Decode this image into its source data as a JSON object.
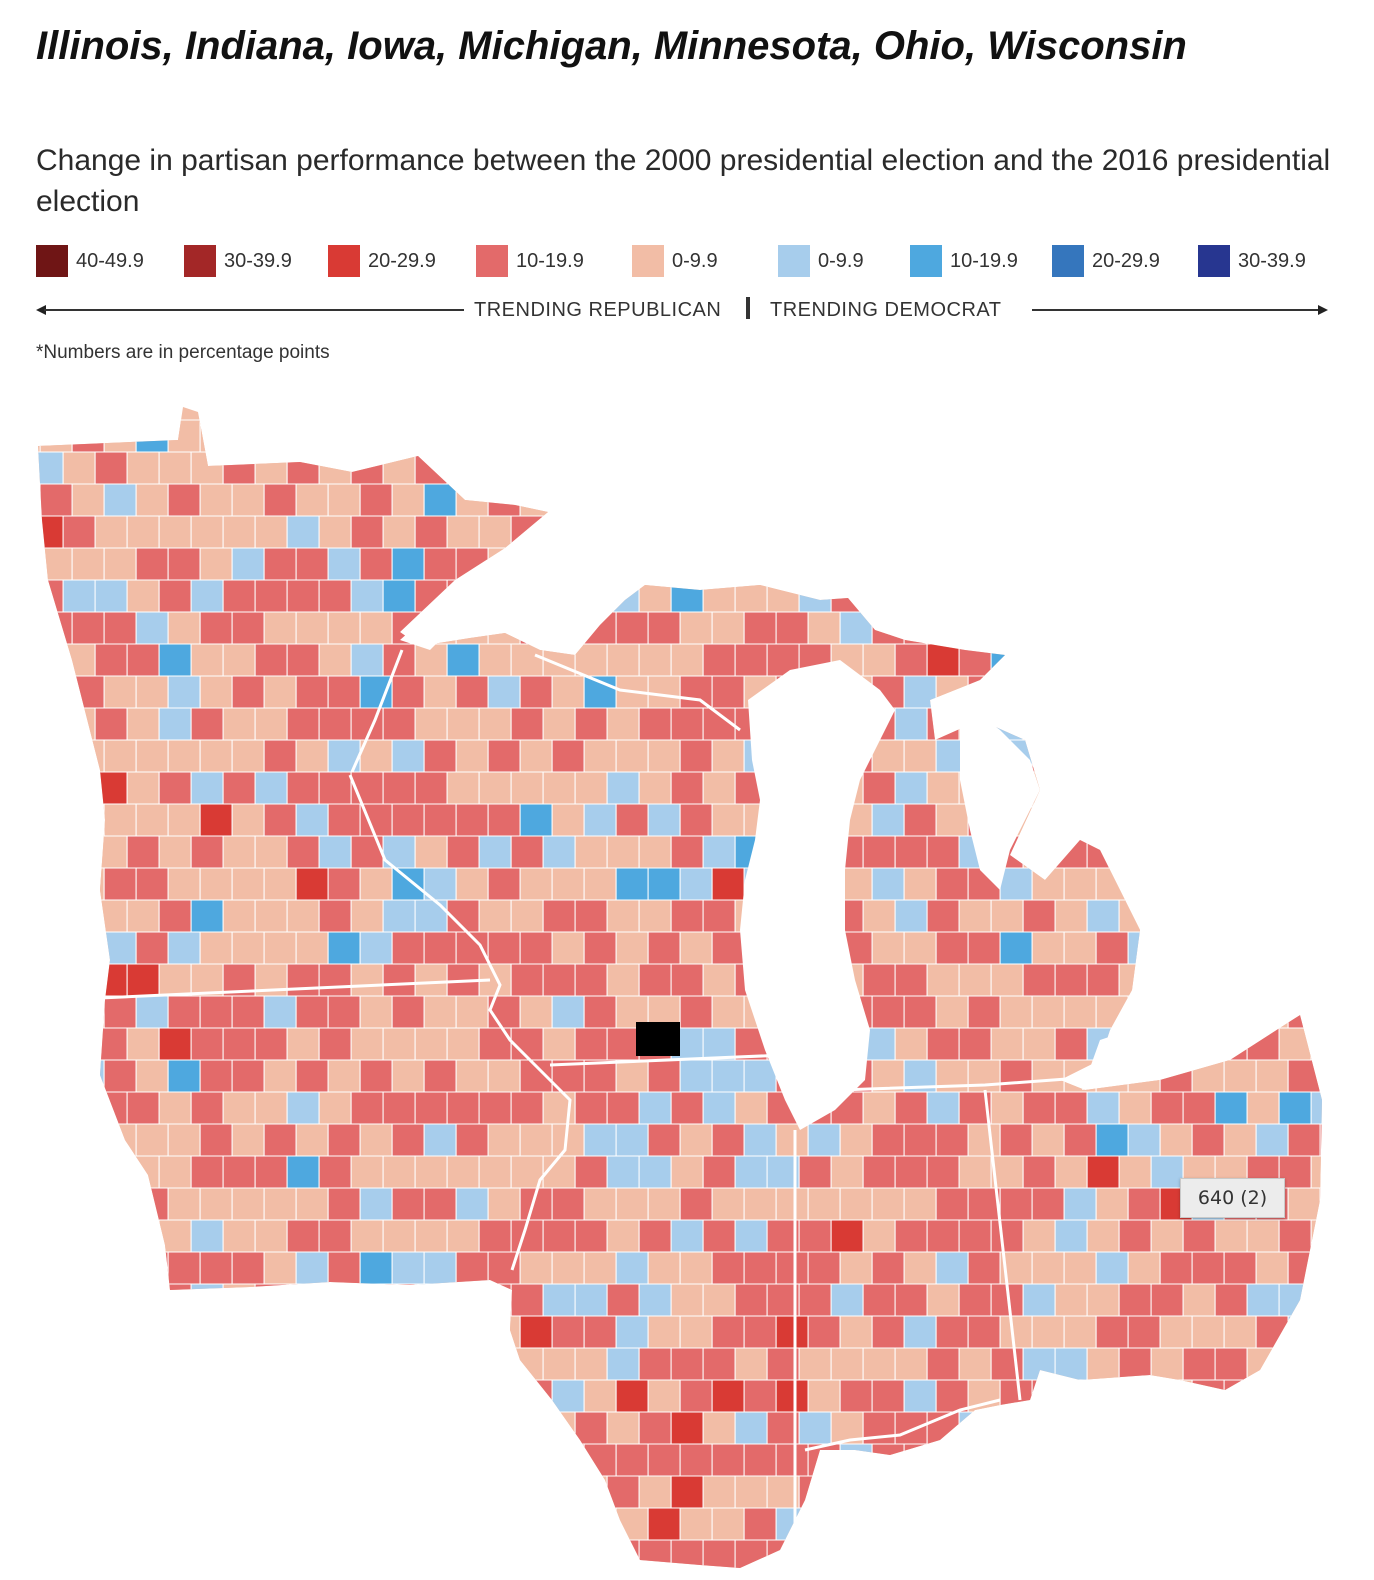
{
  "title": "Illinois, Indiana, Iowa, Michigan, Minnesota, Ohio, Wisconsin",
  "subtitle": "Change in partisan performance between the 2000 presidential election and the 2016 presidential election",
  "legend": [
    {
      "label": "40-49.9",
      "color": "#6f1515"
    },
    {
      "label": "30-39.9",
      "color": "#a32727"
    },
    {
      "label": "20-29.9",
      "color": "#d93a34"
    },
    {
      "label": "10-19.9",
      "color": "#e36a6a"
    },
    {
      "label": "0-9.9",
      "color": "#f2bda6"
    },
    {
      "label": "0-9.9",
      "color": "#a7cdec"
    },
    {
      "label": "10-19.9",
      "color": "#4ea8df"
    },
    {
      "label": "20-29.9",
      "color": "#3576bd"
    },
    {
      "label": "30-39.9",
      "color": "#273690"
    }
  ],
  "trend": {
    "left": "TRENDING REPUBLICAN",
    "right": "TRENDING DEMOCRAT"
  },
  "footnote": "*Numbers are in percentage points",
  "tooltip": "640 (2)",
  "colors": {
    "background": "#ffffff",
    "lake": "#ffffff",
    "border": "#ffffff",
    "highlight": "#000000"
  }
}
